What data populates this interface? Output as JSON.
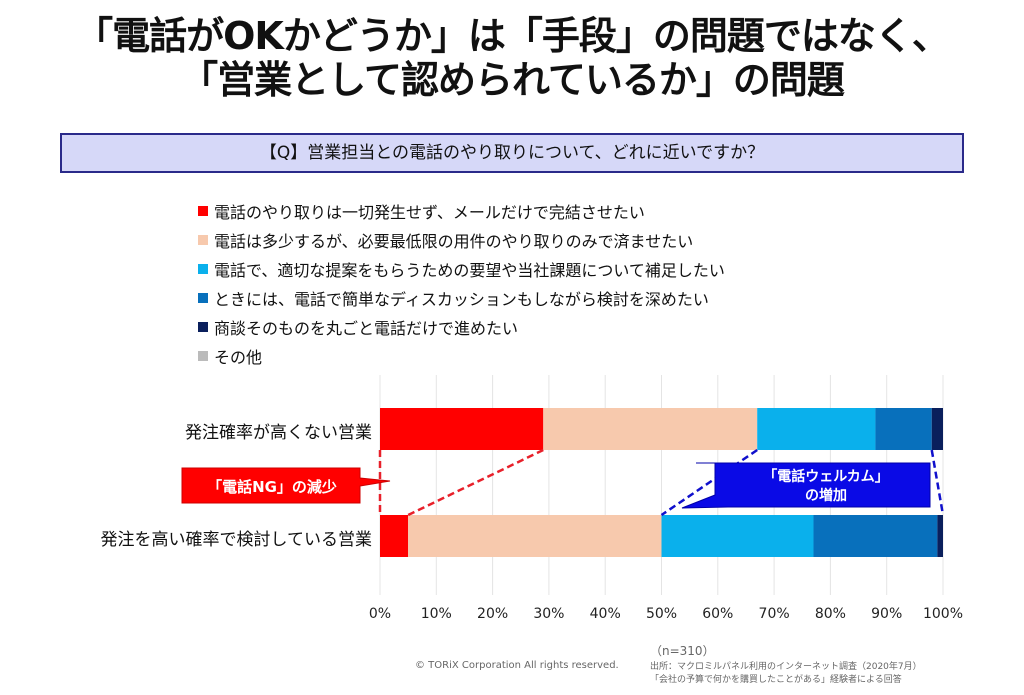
{
  "title": {
    "line1": "「電話がOKかどうか」は「手段」の問題ではなく、",
    "line2": "「営業として認められているか」の問題"
  },
  "question": "【Q】営業担当との電話のやり取りについて、どれに近いですか？",
  "chart_data": {
    "type": "bar",
    "orientation": "horizontal",
    "stacked": true,
    "categories": [
      "発注確率が高くない営業",
      "発注を高い確率で検討している営業"
    ],
    "series": [
      {
        "name": "電話のやり取りは一切発生せず、メールだけで完結させたい",
        "color": "#ff0000",
        "values": [
          29,
          5
        ]
      },
      {
        "name": "電話は多少するが、必要最低限の用件のやり取りのみで済ませたい",
        "color": "#f7c9ad",
        "values": [
          38,
          45
        ]
      },
      {
        "name": "電話で、適切な提案をもらうための要望や当社課題について補足したい",
        "color": "#0ab0ec",
        "values": [
          21,
          27
        ]
      },
      {
        "name": "ときには、電話で簡単なディスカッションもしながら検討を深めたい",
        "color": "#0870bc",
        "values": [
          10,
          22
        ]
      },
      {
        "name": "商談そのものを丸ごと電話だけで進めたい",
        "color": "#0a1f5c",
        "values": [
          2,
          1
        ]
      },
      {
        "name": "その他",
        "color": "#bbbbbb",
        "values": [
          0,
          0
        ]
      }
    ],
    "xlim": [
      0,
      100
    ],
    "xticks": [
      "0%",
      "10%",
      "20%",
      "30%",
      "40%",
      "50%",
      "60%",
      "70%",
      "80%",
      "90%",
      "100%"
    ],
    "annotations": {
      "red": "「電話NG」の減少",
      "blue_line1": "「電話ウェルカム」",
      "blue_line2": "の増加"
    }
  },
  "footer": {
    "copyright": "© TORiX Corporation All rights reserved.",
    "n": "（n=310）",
    "source1": "出所：マクロミルパネル利用のインターネット調査（2020年7月）",
    "source2": "「会社の予算で何かを購買したことがある」経験者による回答"
  }
}
